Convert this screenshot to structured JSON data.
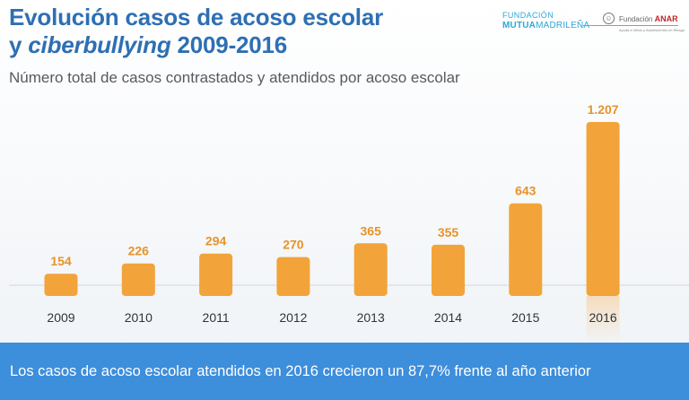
{
  "header": {
    "title_line1": "Evolución casos de acoso escolar",
    "title_line2_prefix": "y ",
    "title_line2_italic": "ciberbullying",
    "title_line2_suffix": " 2009-2016",
    "subtitle": "Número total de casos contrastados y atendidos por acoso escolar"
  },
  "logos": {
    "mutua_line1": "FUNDACIÓN",
    "mutua_line2_bold": "MUTUA",
    "mutua_line2_rest": "MADRILEÑA",
    "anar_prefix": "Fundación",
    "anar_name": "ANAR",
    "anar_tagline": "Ayuda a Niños y Adolescentes en Riesgo"
  },
  "footer": {
    "text": "Los casos de acoso escolar atendidos en 2016 crecieron un 87,7% frente al año anterior"
  },
  "colors": {
    "bar": "#f2a43a",
    "bar_highlight": "#f4ad4c",
    "value_label": "#e8922a",
    "axis_label": "#333333",
    "title": "#2e6fb3",
    "footer_bg": "#3d8edb"
  },
  "chart_data": {
    "type": "bar",
    "categories": [
      "2009",
      "2010",
      "2011",
      "2012",
      "2013",
      "2014",
      "2015",
      "2016"
    ],
    "values": [
      154,
      226,
      294,
      270,
      365,
      355,
      643,
      1207
    ],
    "value_labels": [
      "154",
      "226",
      "294",
      "270",
      "365",
      "355",
      "643",
      "1.207"
    ],
    "title": "Evolución casos de acoso escolar y ciberbullying 2009-2016",
    "xlabel": "",
    "ylabel": "",
    "ylim": [
      0,
      1207
    ],
    "grid": false,
    "legend": "none"
  }
}
